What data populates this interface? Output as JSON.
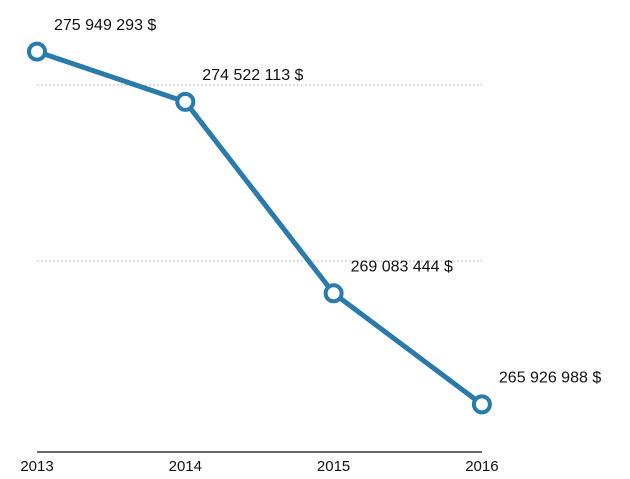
{
  "chart_data": {
    "type": "line",
    "categories": [
      "2013",
      "2014",
      "2015",
      "2016"
    ],
    "series": [
      {
        "color": "#2a7aab",
        "values": [
          275949293,
          274522113,
          269083444,
          265926988
        ],
        "value_labels": [
          "275 949 293 $",
          "274 522 113 $",
          "269 083 444 $",
          "265 926 988 $"
        ]
      }
    ],
    "ylim": [
      264500000,
      277000000
    ],
    "yticks": [
      270000000,
      275000000
    ],
    "grid": true
  }
}
